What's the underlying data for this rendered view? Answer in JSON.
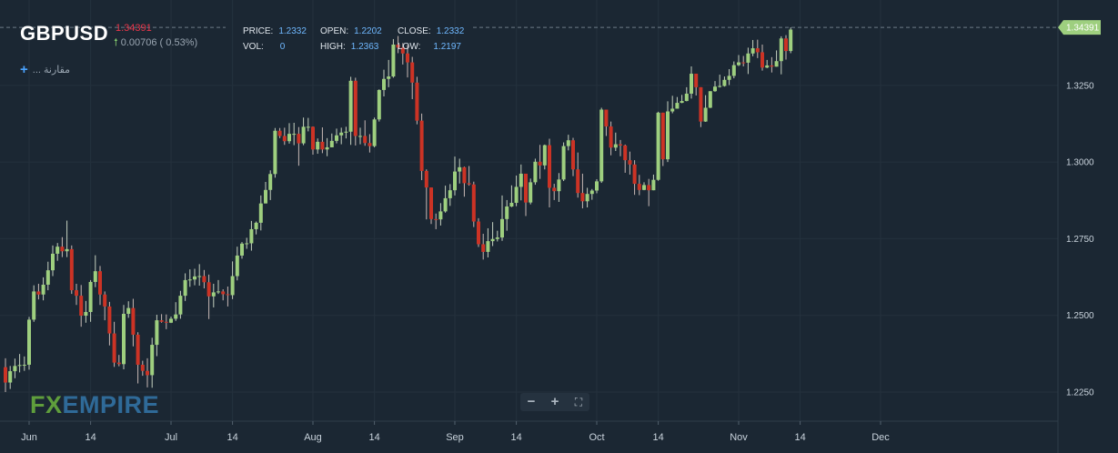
{
  "header": {
    "symbol": "GBPUSD",
    "last_price": "1.34391",
    "change": "0.00706 ( 0.53%)",
    "price_label": "PRICE:",
    "price": "1.2332",
    "open_label": "OPEN:",
    "open": "1.2202",
    "close_label": "CLOSE:",
    "close": "1.2332",
    "vol_label": "VOL:",
    "vol": "0",
    "high_label": "HIGH:",
    "high": "1.2363",
    "low_label": "LOW:",
    "low": "1.2197"
  },
  "compare_label": "... مقارنة",
  "logo": {
    "part1": "FX",
    "part2": "EMPIRE"
  },
  "controls": {
    "zoom_out": "−",
    "zoom_in": "+",
    "fullscreen": "⛶"
  },
  "colors": {
    "background": "#1b2733",
    "up": "#9ecf7f",
    "down": "#cc3325",
    "last_price_tag": "#9ecf7f",
    "grid": "#24313d"
  },
  "chart_data": {
    "type": "candlestick",
    "ylim": [
      1.2155,
      1.3475
    ],
    "y_ticks": [
      1.225,
      1.25,
      1.275,
      1.3,
      1.325
    ],
    "y_tick_labels": [
      "1.2250",
      "1.2500",
      "1.2750",
      "1.3000",
      "1.3250"
    ],
    "x_ticks": [
      {
        "label": "Jun",
        "index": 5
      },
      {
        "label": "14",
        "index": 18
      },
      {
        "label": "Jul",
        "index": 35
      },
      {
        "label": "14",
        "index": 48
      },
      {
        "label": "Aug",
        "index": 65
      },
      {
        "label": "14",
        "index": 78
      },
      {
        "label": "Sep",
        "index": 95
      },
      {
        "label": "14",
        "index": 108
      },
      {
        "label": "Oct",
        "index": 125
      },
      {
        "label": "14",
        "index": 138
      },
      {
        "label": "Nov",
        "index": 155
      },
      {
        "label": "14",
        "index": 168
      },
      {
        "label": "Dec",
        "index": 185
      }
    ],
    "last_price": 1.34391,
    "grid": true,
    "candles": [
      [
        1.2331,
        1.2281,
        1.236,
        1.225
      ],
      [
        1.2281,
        1.2318,
        1.2335,
        1.226
      ],
      [
        1.2318,
        1.2335,
        1.2359,
        1.2295
      ],
      [
        1.2335,
        1.2338,
        1.2374,
        1.2314
      ],
      [
        1.2338,
        1.2339,
        1.2366,
        1.2319
      ],
      [
        1.2339,
        1.2486,
        1.2495,
        1.2323
      ],
      [
        1.2486,
        1.2578,
        1.2598,
        1.2479
      ],
      [
        1.2578,
        1.2568,
        1.2603,
        1.2552
      ],
      [
        1.2568,
        1.26,
        1.2624,
        1.2549
      ],
      [
        1.26,
        1.2647,
        1.2675,
        1.2582
      ],
      [
        1.2647,
        1.2701,
        1.2728,
        1.2628
      ],
      [
        1.2701,
        1.2724,
        1.2736,
        1.2678
      ],
      [
        1.2724,
        1.2709,
        1.2755,
        1.269
      ],
      [
        1.2709,
        1.2716,
        1.2809,
        1.269
      ],
      [
        1.2716,
        1.2582,
        1.2728,
        1.257
      ],
      [
        1.2582,
        1.2564,
        1.2603,
        1.2534
      ],
      [
        1.2564,
        1.2499,
        1.2599,
        1.2463
      ],
      [
        1.2499,
        1.2511,
        1.2547,
        1.2476
      ],
      [
        1.2511,
        1.2609,
        1.2615,
        1.2479
      ],
      [
        1.2609,
        1.2644,
        1.2696,
        1.2592
      ],
      [
        1.2644,
        1.2568,
        1.2661,
        1.2534
      ],
      [
        1.2568,
        1.2529,
        1.2578,
        1.2484
      ],
      [
        1.2529,
        1.2441,
        1.2544,
        1.2402
      ],
      [
        1.2441,
        1.2346,
        1.2479,
        1.2332
      ],
      [
        1.2346,
        1.2341,
        1.2371,
        1.2334
      ],
      [
        1.2341,
        1.2505,
        1.2534,
        1.2324
      ],
      [
        1.2505,
        1.2524,
        1.2546,
        1.2492
      ],
      [
        1.2524,
        1.2437,
        1.2554,
        1.2399
      ],
      [
        1.2437,
        1.2339,
        1.2445,
        1.2278
      ],
      [
        1.2339,
        1.2319,
        1.2352,
        1.2303
      ],
      [
        1.2319,
        1.2305,
        1.236,
        1.2265
      ],
      [
        1.2305,
        1.2404,
        1.2427,
        1.2264
      ],
      [
        1.2404,
        1.2484,
        1.2502,
        1.2367
      ],
      [
        1.2484,
        1.2479,
        1.2504,
        1.2476
      ],
      [
        1.2479,
        1.2476,
        1.2503,
        1.2455
      ],
      [
        1.2476,
        1.2489,
        1.2496,
        1.2475
      ],
      [
        1.2489,
        1.2503,
        1.2543,
        1.2482
      ],
      [
        1.2503,
        1.2564,
        1.258,
        1.2489
      ],
      [
        1.2564,
        1.2615,
        1.2637,
        1.2547
      ],
      [
        1.2615,
        1.2617,
        1.265,
        1.2593
      ],
      [
        1.2617,
        1.2627,
        1.2652,
        1.2598
      ],
      [
        1.2627,
        1.2628,
        1.2667,
        1.2597
      ],
      [
        1.2628,
        1.2608,
        1.2648,
        1.2588
      ],
      [
        1.2608,
        1.2562,
        1.2633,
        1.2488
      ],
      [
        1.2562,
        1.2575,
        1.2603,
        1.2526
      ],
      [
        1.2575,
        1.2578,
        1.2615,
        1.257
      ],
      [
        1.2578,
        1.2569,
        1.2585,
        1.2549
      ],
      [
        1.2569,
        1.2566,
        1.2594,
        1.2529
      ],
      [
        1.2566,
        1.2628,
        1.2676,
        1.2553
      ],
      [
        1.2628,
        1.2695,
        1.2724,
        1.2614
      ],
      [
        1.2695,
        1.2734,
        1.2739,
        1.2685
      ],
      [
        1.2734,
        1.2735,
        1.2753,
        1.2717
      ],
      [
        1.2735,
        1.2781,
        1.2808,
        1.2711
      ],
      [
        1.2781,
        1.2802,
        1.2806,
        1.2764
      ],
      [
        1.2802,
        1.2865,
        1.2891,
        1.2777
      ],
      [
        1.2865,
        1.2909,
        1.2935,
        1.2873
      ],
      [
        1.2909,
        1.2961,
        1.2973,
        1.2876
      ],
      [
        1.2961,
        1.3102,
        1.3111,
        1.2949
      ],
      [
        1.3102,
        1.3085,
        1.3111,
        1.3078
      ],
      [
        1.3085,
        1.3068,
        1.3112,
        1.3056
      ],
      [
        1.3068,
        1.3092,
        1.3127,
        1.306
      ],
      [
        1.3092,
        1.3092,
        1.3128,
        1.3055
      ],
      [
        1.3092,
        1.3061,
        1.3114,
        1.2988
      ],
      [
        1.3061,
        1.3115,
        1.3145,
        1.3055
      ],
      [
        1.3115,
        1.3115,
        1.3144,
        1.31
      ],
      [
        1.3115,
        1.3041,
        1.3116,
        1.3024
      ],
      [
        1.3041,
        1.3066,
        1.3077,
        1.3027
      ],
      [
        1.3066,
        1.3041,
        1.3113,
        1.3029
      ],
      [
        1.3041,
        1.3048,
        1.3078,
        1.3019
      ],
      [
        1.3048,
        1.3069,
        1.3093,
        1.3048
      ],
      [
        1.3069,
        1.3087,
        1.3109,
        1.3061
      ],
      [
        1.3087,
        1.3096,
        1.3112,
        1.3058
      ],
      [
        1.3096,
        1.3099,
        1.3115,
        1.3077
      ],
      [
        1.3099,
        1.3265,
        1.3278,
        1.3056
      ],
      [
        1.3265,
        1.3085,
        1.3275,
        1.3054
      ],
      [
        1.3085,
        1.3085,
        1.3112,
        1.3058
      ],
      [
        1.3085,
        1.3062,
        1.3136,
        1.3053
      ],
      [
        1.3062,
        1.3052,
        1.3091,
        1.3031
      ],
      [
        1.3052,
        1.3139,
        1.3145,
        1.3048
      ],
      [
        1.3139,
        1.3235,
        1.3237,
        1.3132
      ],
      [
        1.3235,
        1.3271,
        1.3301,
        1.3214
      ],
      [
        1.3271,
        1.3279,
        1.3333,
        1.3244
      ],
      [
        1.3279,
        1.3383,
        1.3401,
        1.3275
      ],
      [
        1.3383,
        1.3373,
        1.3411,
        1.3355
      ],
      [
        1.3373,
        1.3354,
        1.3388,
        1.3318
      ],
      [
        1.3354,
        1.3325,
        1.3382,
        1.3276
      ],
      [
        1.3325,
        1.3259,
        1.3343,
        1.3205
      ],
      [
        1.3259,
        1.3135,
        1.3278,
        1.3123
      ],
      [
        1.3135,
        1.2971,
        1.3158,
        1.2941
      ],
      [
        1.2971,
        1.2917,
        1.2976,
        1.2813
      ],
      [
        1.2917,
        1.2814,
        1.2917,
        1.2798
      ],
      [
        1.2814,
        1.2813,
        1.2832,
        1.2781
      ],
      [
        1.2813,
        1.2839,
        1.2866,
        1.2793
      ],
      [
        1.2839,
        1.2882,
        1.2923,
        1.2835
      ],
      [
        1.2882,
        1.2908,
        1.2928,
        1.2857
      ],
      [
        1.2908,
        1.2969,
        1.3018,
        1.2891
      ],
      [
        1.2969,
        1.2983,
        1.3011,
        1.293
      ],
      [
        1.2983,
        1.2931,
        1.2985,
        1.2887
      ],
      [
        1.2931,
        1.2927,
        1.2987,
        1.2923
      ],
      [
        1.2927,
        1.2806,
        1.2936,
        1.2788
      ],
      [
        1.2806,
        1.2732,
        1.2817,
        1.2723
      ],
      [
        1.2732,
        1.2707,
        1.2766,
        1.2682
      ],
      [
        1.2707,
        1.2742,
        1.2784,
        1.2689
      ],
      [
        1.2742,
        1.2749,
        1.2804,
        1.2726
      ],
      [
        1.2749,
        1.2754,
        1.2776,
        1.2741
      ],
      [
        1.2754,
        1.2814,
        1.2891,
        1.2743
      ],
      [
        1.2814,
        1.2855,
        1.2876,
        1.2776
      ],
      [
        1.2855,
        1.2867,
        1.2924,
        1.2853
      ],
      [
        1.2867,
        1.2919,
        1.2956,
        1.2856
      ],
      [
        1.2919,
        1.2962,
        1.2992,
        1.2875
      ],
      [
        1.2962,
        1.2868,
        1.2962,
        1.2824
      ],
      [
        1.2868,
        1.2934,
        1.2946,
        1.2862
      ],
      [
        1.2934,
        1.3001,
        1.3011,
        1.2926
      ],
      [
        1.3001,
        1.2989,
        1.3056,
        1.2945
      ],
      [
        1.2989,
        1.3055,
        1.3057,
        1.2976
      ],
      [
        1.3055,
        1.2916,
        1.3076,
        1.2852
      ],
      [
        1.2916,
        1.2905,
        1.2929,
        1.2876
      ],
      [
        1.2905,
        1.2943,
        1.2964,
        1.287
      ],
      [
        1.2943,
        1.3052,
        1.3064,
        1.2938
      ],
      [
        1.3052,
        1.3071,
        1.3089,
        1.3038
      ],
      [
        1.3071,
        1.2976,
        1.3079,
        1.2954
      ],
      [
        1.2976,
        1.2899,
        1.3031,
        1.2884
      ],
      [
        1.2899,
        1.2872,
        1.2962,
        1.2849
      ],
      [
        1.2872,
        1.2896,
        1.2916,
        1.2852
      ],
      [
        1.2896,
        1.2907,
        1.2912,
        1.2877
      ],
      [
        1.2907,
        1.2937,
        1.2944,
        1.2898
      ],
      [
        1.2937,
        1.3171,
        1.3177,
        1.2932
      ],
      [
        1.3171,
        1.3116,
        1.3164,
        1.3085
      ],
      [
        1.3116,
        1.3047,
        1.3132,
        1.3022
      ],
      [
        1.3047,
        1.3058,
        1.3096,
        1.3036
      ],
      [
        1.3058,
        1.3054,
        1.3072,
        1.3019
      ],
      [
        1.3054,
        1.3006,
        1.3057,
        1.2965
      ],
      [
        1.3006,
        1.2992,
        1.3034,
        1.2959
      ],
      [
        1.2992,
        1.2929,
        1.3006,
        1.2893
      ],
      [
        1.2929,
        1.2909,
        1.2958,
        1.2892
      ],
      [
        1.2909,
        1.2925,
        1.2934,
        1.2908
      ],
      [
        1.2925,
        1.2908,
        1.2945,
        1.2856
      ],
      [
        1.2908,
        1.2942,
        1.2959,
        1.2922
      ],
      [
        1.2942,
        1.3161,
        1.3164,
        1.2939
      ],
      [
        1.3161,
        1.3009,
        1.3161,
        1.2987
      ],
      [
        1.3009,
        1.3165,
        1.3198,
        1.3
      ],
      [
        1.3165,
        1.3174,
        1.3216,
        1.3159
      ],
      [
        1.3174,
        1.3193,
        1.3212,
        1.3177
      ],
      [
        1.3193,
        1.3199,
        1.3219,
        1.3192
      ],
      [
        1.3199,
        1.3223,
        1.3244,
        1.3198
      ],
      [
        1.3223,
        1.3288,
        1.3312,
        1.3207
      ],
      [
        1.3288,
        1.3244,
        1.3284,
        1.3217
      ],
      [
        1.3244,
        1.3132,
        1.3244,
        1.3114
      ],
      [
        1.3132,
        1.3177,
        1.3218,
        1.3131
      ],
      [
        1.3177,
        1.3231,
        1.3224,
        1.3176
      ],
      [
        1.3231,
        1.3246,
        1.3264,
        1.3229
      ],
      [
        1.3246,
        1.3248,
        1.3285,
        1.3243
      ],
      [
        1.3248,
        1.3268,
        1.3279,
        1.3246
      ],
      [
        1.3268,
        1.3281,
        1.3303,
        1.3251
      ],
      [
        1.3281,
        1.3316,
        1.3328,
        1.3273
      ],
      [
        1.3316,
        1.3325,
        1.3349,
        1.3313
      ],
      [
        1.3325,
        1.3324,
        1.3346,
        1.3312
      ],
      [
        1.3324,
        1.3354,
        1.3373,
        1.3287
      ],
      [
        1.3354,
        1.3371,
        1.3398,
        1.3345
      ],
      [
        1.3371,
        1.3358,
        1.3399,
        1.3339
      ],
      [
        1.3358,
        1.3308,
        1.3383,
        1.3298
      ],
      [
        1.3308,
        1.3315,
        1.3333,
        1.3306
      ],
      [
        1.3315,
        1.3311,
        1.3342,
        1.3292
      ],
      [
        1.3311,
        1.3329,
        1.3364,
        1.3311
      ],
      [
        1.3329,
        1.3403,
        1.341,
        1.3286
      ],
      [
        1.3403,
        1.3362,
        1.3414,
        1.3334
      ],
      [
        1.3362,
        1.3432,
        1.3439,
        1.3355
      ]
    ]
  }
}
